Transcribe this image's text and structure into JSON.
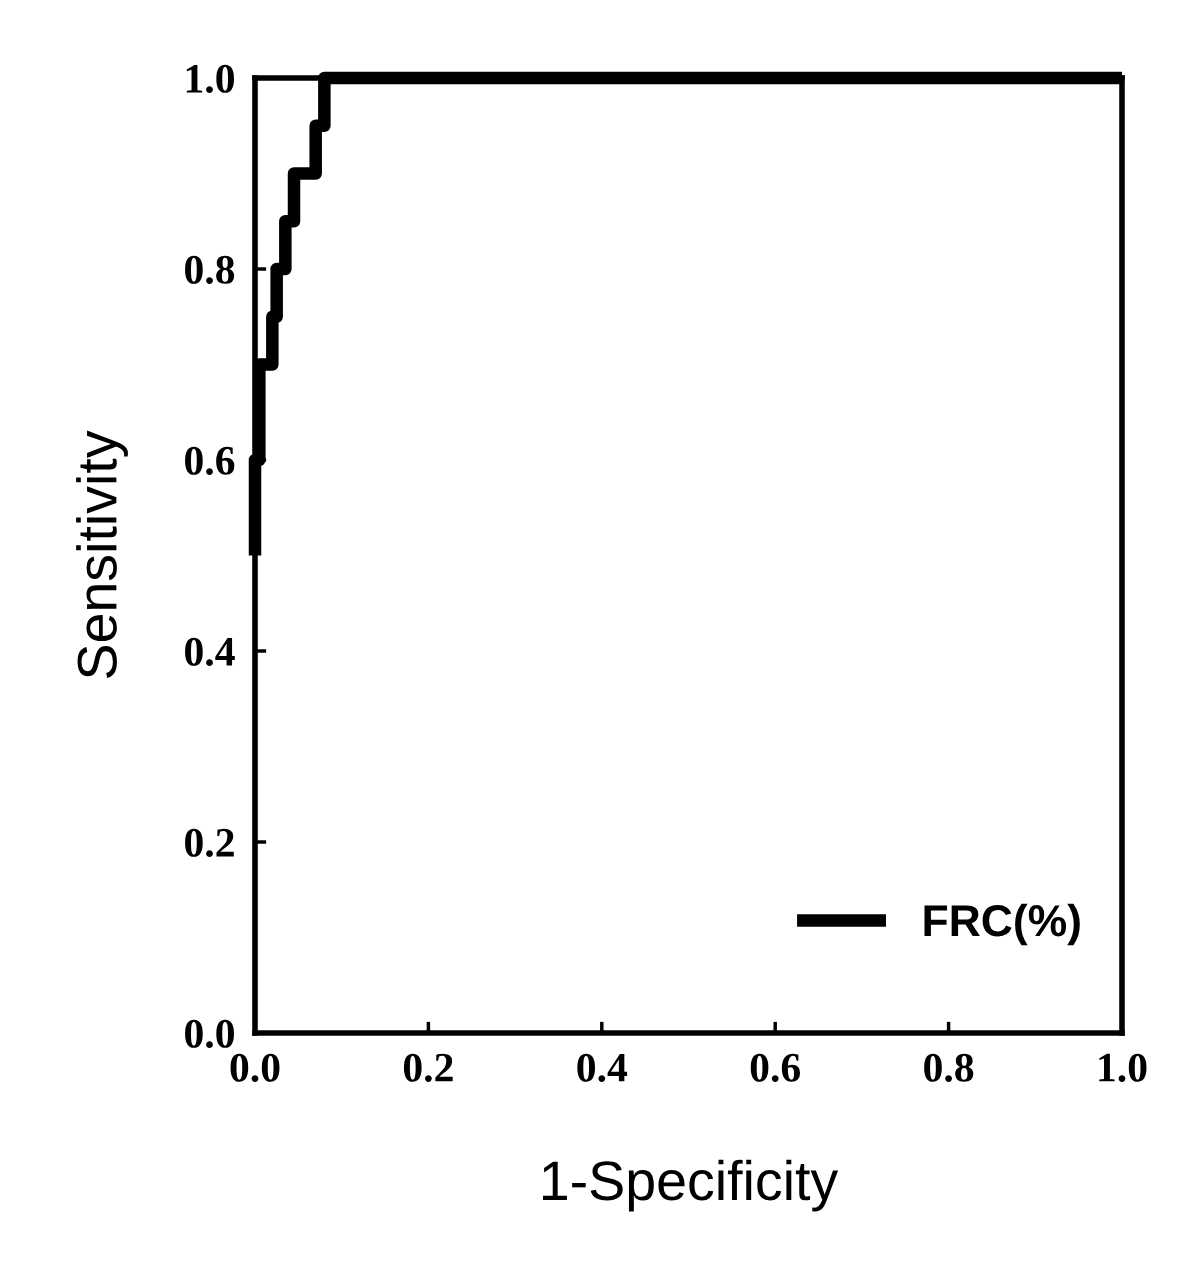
{
  "chart_data": {
    "type": "line",
    "xlabel": "1-Specificity",
    "ylabel": "Sensitivity",
    "series": [
      {
        "name": "FRC(%)",
        "color": "#000000",
        "x": [
          0,
          0,
          0.005,
          0.005,
          0.02,
          0.02,
          0.025,
          0.025,
          0.035,
          0.035,
          0.045,
          0.045,
          0.07,
          0.07,
          0.08,
          0.08,
          1.0
        ],
        "values": [
          0.5,
          0.6,
          0.6,
          0.7,
          0.7,
          0.75,
          0.75,
          0.8,
          0.8,
          0.85,
          0.85,
          0.9,
          0.9,
          0.95,
          0.95,
          1.0,
          1.0
        ]
      }
    ],
    "xlim": [
      0,
      1
    ],
    "ylim": [
      0,
      1
    ],
    "xticks": [
      {
        "value": 0,
        "label": "0.0"
      },
      0.2,
      0.4,
      0.6,
      0.8,
      {
        "value": 1,
        "label": "1.0"
      }
    ],
    "yticks": [
      {
        "value": 0,
        "label": "0.0"
      },
      0.2,
      0.4,
      0.6,
      0.8,
      {
        "value": 1,
        "label": "1.0"
      }
    ],
    "legend": "bottom right",
    "grid": false,
    "marker": "none",
    "line_style": "solid"
  }
}
